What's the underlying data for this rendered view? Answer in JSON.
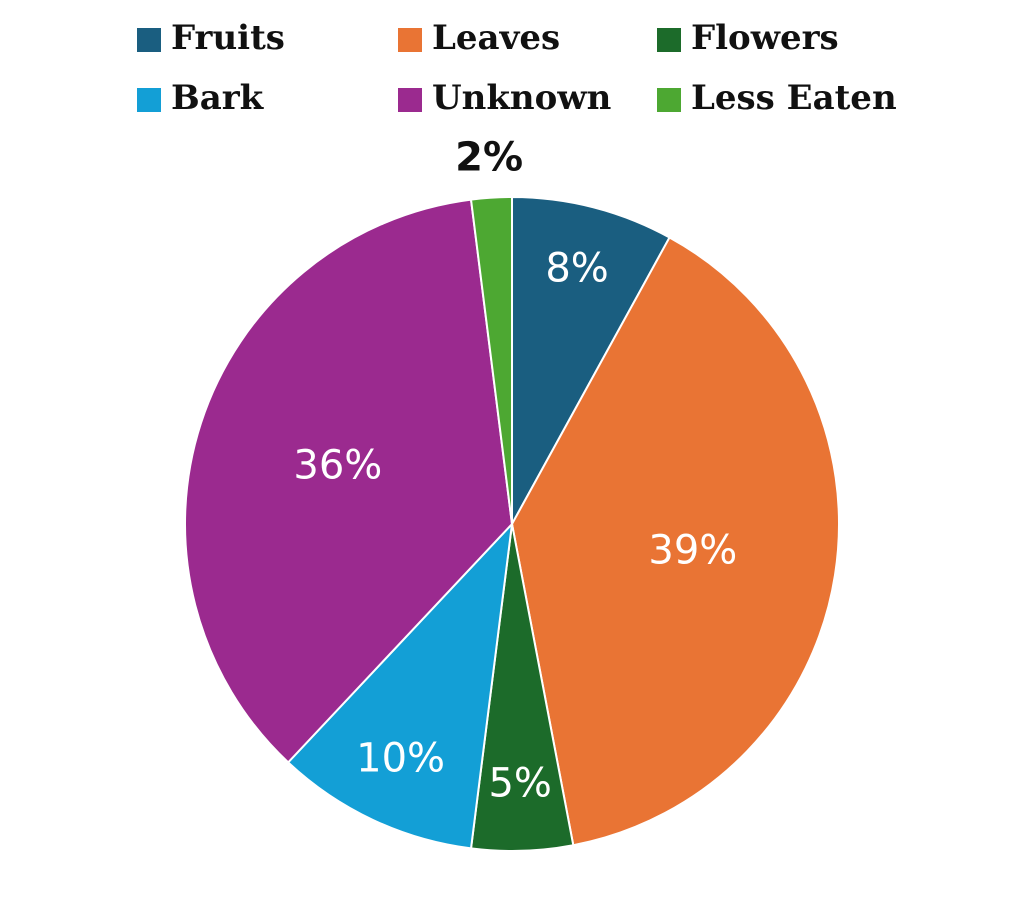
{
  "chart_data": {
    "type": "pie",
    "categories": [
      "Fruits",
      "Leaves",
      "Flowers",
      "Bark",
      "Unknown",
      "Less Eaten"
    ],
    "values": [
      8,
      39,
      5,
      10,
      36,
      2
    ],
    "value_labels": [
      "8%",
      "39%",
      "5%",
      "10%",
      "36%",
      "2%"
    ],
    "colors": [
      "#1a5e80",
      "#e97434",
      "#1c6b2a",
      "#139fd6",
      "#9b2a8f",
      "#4da832"
    ]
  }
}
